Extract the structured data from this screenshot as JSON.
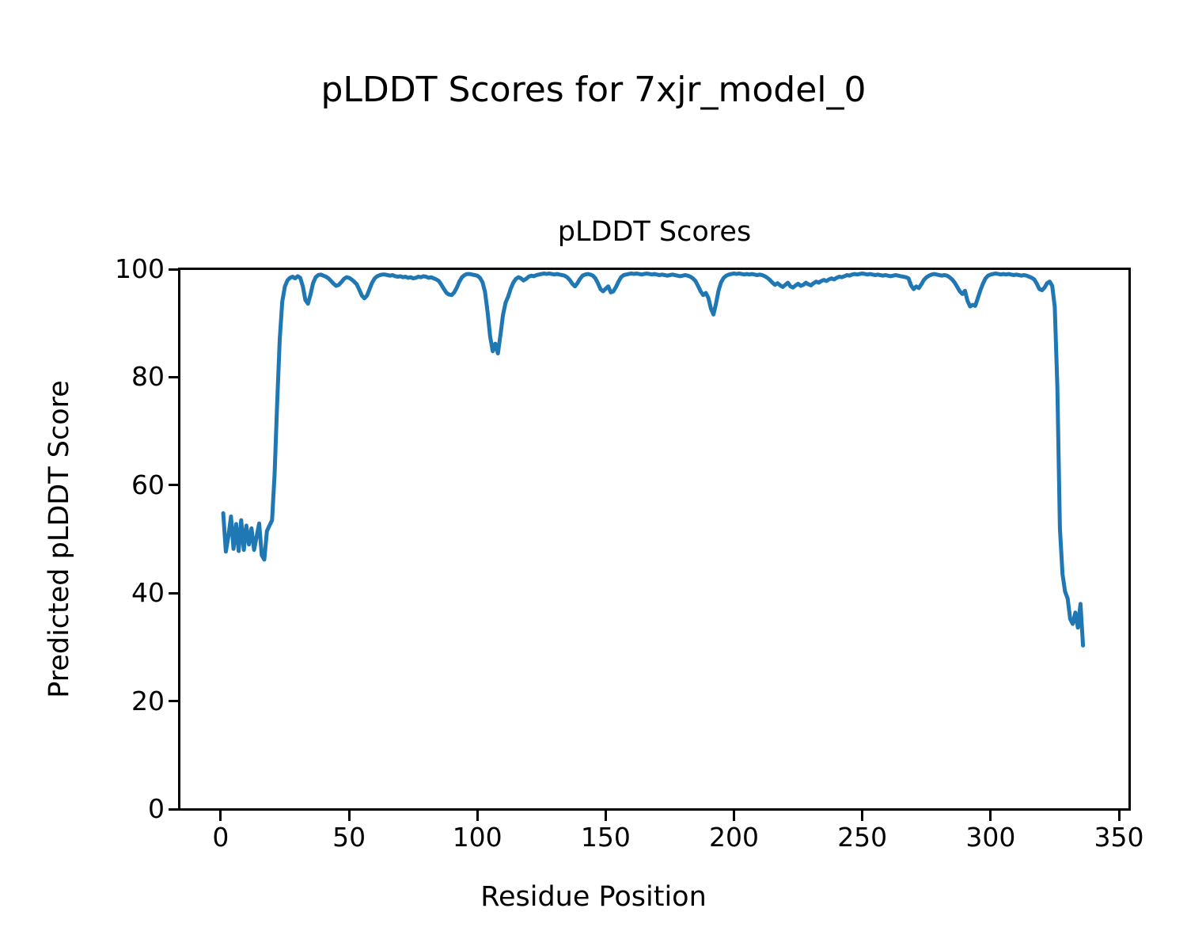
{
  "figure": {
    "suptitle": "pLDDT Scores for 7xjr_model_0",
    "axes_title": "pLDDT Scores",
    "xlabel": "Residue Position",
    "ylabel": "Predicted pLDDT Score"
  },
  "chart_data": {
    "type": "line",
    "title": "pLDDT Scores",
    "suptitle": "pLDDT Scores for 7xjr_model_0",
    "xlabel": "Residue Position",
    "ylabel": "Predicted pLDDT Score",
    "xlim": [
      -16,
      354
    ],
    "ylim": [
      0,
      100
    ],
    "x_ticks": [
      0,
      50,
      100,
      150,
      200,
      250,
      300,
      350
    ],
    "y_ticks": [
      0,
      20,
      40,
      60,
      80,
      100
    ],
    "grid": false,
    "legend": "none",
    "line_color": "#1f77b4",
    "line_width": 5,
    "series": [
      {
        "name": "pLDDT",
        "x_start": 1,
        "x_step": 1,
        "values": [
          54.8,
          47.7,
          50.5,
          54.2,
          48.2,
          52.8,
          47.8,
          53.5,
          48.0,
          52.5,
          49.0,
          52.0,
          48.0,
          50.5,
          52.9,
          47.0,
          46.2,
          51.5,
          52.5,
          53.5,
          62.0,
          75.0,
          87.0,
          94.0,
          96.8,
          97.9,
          98.4,
          98.6,
          98.3,
          98.7,
          98.4,
          96.8,
          94.3,
          93.6,
          95.3,
          97.4,
          98.5,
          98.9,
          99.0,
          98.8,
          98.6,
          98.3,
          97.8,
          97.3,
          96.9,
          97.1,
          97.6,
          98.2,
          98.5,
          98.4,
          98.1,
          97.7,
          97.2,
          96.2,
          95.1,
          94.6,
          95.1,
          96.3,
          97.5,
          98.3,
          98.7,
          98.9,
          99.0,
          99.0,
          98.9,
          98.8,
          98.9,
          98.7,
          98.6,
          98.7,
          98.5,
          98.6,
          98.4,
          98.5,
          98.3,
          98.4,
          98.6,
          98.5,
          98.7,
          98.6,
          98.4,
          98.5,
          98.3,
          98.1,
          97.8,
          97.1,
          96.3,
          95.6,
          95.3,
          95.2,
          95.7,
          96.6,
          97.7,
          98.5,
          98.9,
          99.1,
          99.1,
          99.0,
          98.9,
          98.8,
          98.4,
          97.6,
          95.8,
          92.0,
          87.5,
          84.8,
          86.2,
          84.4,
          87.8,
          91.5,
          93.8,
          94.9,
          96.4,
          97.5,
          98.2,
          98.5,
          98.3,
          97.9,
          98.2,
          98.6,
          98.8,
          98.7,
          98.9,
          99.0,
          99.1,
          99.2,
          99.1,
          99.2,
          99.1,
          99.0,
          99.1,
          99.0,
          98.9,
          98.8,
          98.5,
          98.0,
          97.3,
          96.8,
          97.4,
          98.2,
          98.8,
          99.0,
          99.1,
          99.0,
          98.8,
          98.3,
          97.4,
          96.3,
          95.9,
          96.4,
          96.8,
          95.7,
          95.9,
          96.7,
          97.7,
          98.5,
          98.9,
          99.0,
          99.1,
          99.2,
          99.1,
          99.2,
          99.1,
          99.0,
          99.1,
          99.2,
          99.1,
          99.0,
          99.1,
          99.0,
          98.9,
          99.0,
          98.9,
          98.8,
          98.9,
          99.0,
          98.9,
          98.8,
          98.7,
          98.8,
          98.9,
          98.8,
          98.6,
          98.3,
          97.8,
          96.9,
          95.9,
          95.2,
          95.6,
          94.7,
          92.7,
          91.6,
          93.6,
          96.1,
          97.6,
          98.4,
          98.8,
          99.0,
          99.1,
          99.2,
          99.1,
          99.2,
          99.1,
          99.0,
          99.1,
          99.0,
          99.1,
          99.0,
          98.9,
          99.0,
          98.9,
          98.7,
          98.4,
          98.0,
          97.5,
          97.1,
          97.4,
          97.0,
          96.7,
          97.1,
          97.5,
          96.8,
          96.6,
          97.0,
          97.3,
          96.9,
          97.1,
          97.5,
          97.2,
          97.0,
          97.4,
          97.7,
          97.5,
          97.8,
          98.0,
          97.8,
          98.1,
          98.3,
          98.1,
          98.4,
          98.6,
          98.5,
          98.7,
          98.9,
          98.8,
          99.0,
          99.1,
          99.0,
          99.1,
          99.2,
          99.1,
          99.0,
          99.1,
          99.0,
          98.9,
          99.0,
          98.9,
          98.8,
          98.9,
          98.8,
          98.7,
          98.8,
          98.9,
          98.8,
          98.7,
          98.6,
          98.5,
          98.3,
          97.0,
          96.3,
          96.8,
          96.5,
          97.2,
          98.0,
          98.5,
          98.8,
          99.0,
          99.1,
          99.0,
          98.9,
          98.8,
          98.9,
          98.8,
          98.5,
          98.1,
          97.5,
          96.7,
          95.9,
          95.4,
          96.0,
          94.1,
          93.1,
          93.4,
          93.2,
          94.6,
          96.1,
          97.3,
          98.3,
          98.8,
          99.0,
          99.1,
          99.2,
          99.1,
          99.0,
          99.1,
          99.0,
          99.1,
          99.0,
          98.9,
          99.0,
          98.9,
          98.8,
          98.9,
          98.8,
          98.6,
          98.4,
          98.1,
          97.3,
          96.3,
          96.1,
          96.6,
          97.4,
          97.7,
          96.9,
          93.0,
          78.0,
          52.0,
          43.5,
          40.3,
          39.0,
          35.2,
          34.3,
          36.4,
          33.6,
          38.0,
          30.3
        ]
      }
    ]
  }
}
